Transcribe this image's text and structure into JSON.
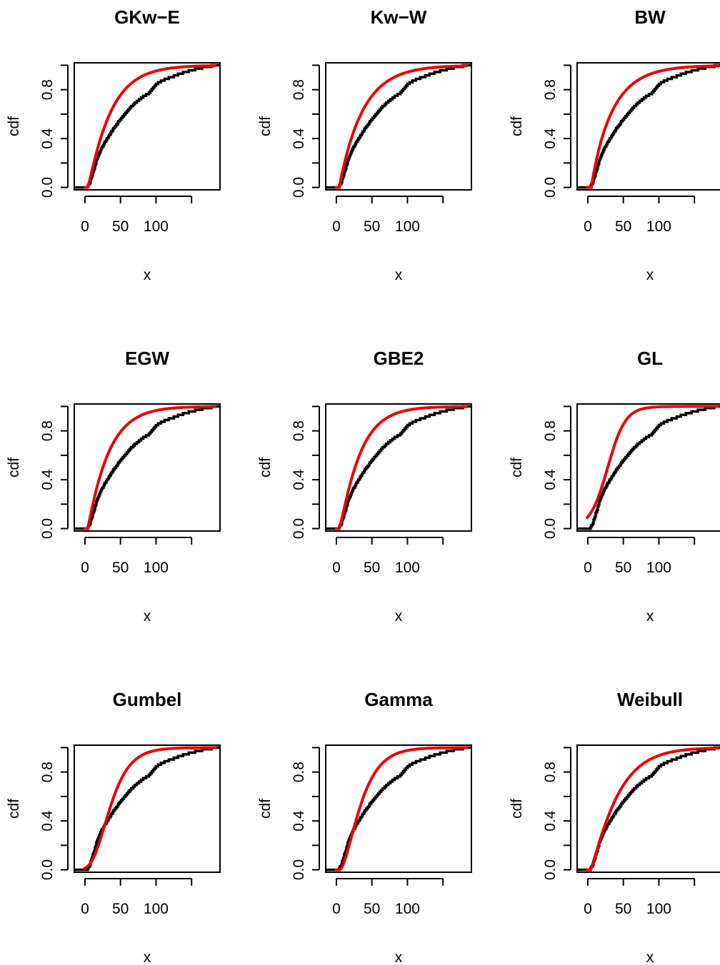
{
  "figure": {
    "colors": {
      "empirical": "#000000",
      "fitted": "#ee0000",
      "axes": "#000000"
    }
  },
  "chart_data": [
    {
      "type": "line",
      "title": "GKw−E",
      "xlabel": "x",
      "ylabel": "cdf",
      "xticks": [
        "0",
        "50",
        "100"
      ],
      "xtick_values": [
        0,
        50,
        100,
        150
      ],
      "yticks": [
        "0.0",
        "0.4",
        "0.8"
      ],
      "ytick_values": [
        0,
        0.2,
        0.4,
        0.6,
        0.8,
        1.0
      ],
      "xlim": [
        -15,
        190
      ],
      "ylim": [
        -0.02,
        1.02
      ],
      "grid": false,
      "fit_model": "gkwe",
      "series": []
    },
    {
      "type": "line",
      "title": "Kw−W",
      "xlabel": "x",
      "ylabel": "cdf",
      "xticks": [
        "0",
        "50",
        "100"
      ],
      "xtick_values": [
        0,
        50,
        100,
        150
      ],
      "yticks": [
        "0.0",
        "0.4",
        "0.8"
      ],
      "ytick_values": [
        0,
        0.2,
        0.4,
        0.6,
        0.8,
        1.0
      ],
      "xlim": [
        -15,
        190
      ],
      "ylim": [
        -0.02,
        1.02
      ],
      "grid": false,
      "fit_model": "kww",
      "series": []
    },
    {
      "type": "line",
      "title": "BW",
      "xlabel": "x",
      "ylabel": "cdf",
      "xticks": [
        "0",
        "50",
        "100"
      ],
      "xtick_values": [
        0,
        50,
        100,
        150
      ],
      "yticks": [
        "0.0",
        "0.4",
        "0.8"
      ],
      "ytick_values": [
        0,
        0.2,
        0.4,
        0.6,
        0.8,
        1.0
      ],
      "xlim": [
        -15,
        190
      ],
      "ylim": [
        -0.02,
        1.02
      ],
      "grid": false,
      "fit_model": "bw",
      "series": []
    },
    {
      "type": "line",
      "title": "EGW",
      "xlabel": "x",
      "ylabel": "cdf",
      "xticks": [
        "0",
        "50",
        "100"
      ],
      "xtick_values": [
        0,
        50,
        100,
        150
      ],
      "yticks": [
        "0.0",
        "0.4",
        "0.8"
      ],
      "ytick_values": [
        0,
        0.2,
        0.4,
        0.6,
        0.8,
        1.0
      ],
      "xlim": [
        -15,
        190
      ],
      "ylim": [
        -0.02,
        1.02
      ],
      "grid": false,
      "fit_model": "egw",
      "series": []
    },
    {
      "type": "line",
      "title": "GBE2",
      "xlabel": "x",
      "ylabel": "cdf",
      "xticks": [
        "0",
        "50",
        "100"
      ],
      "xtick_values": [
        0,
        50,
        100,
        150
      ],
      "yticks": [
        "0.0",
        "0.4",
        "0.8"
      ],
      "ytick_values": [
        0,
        0.2,
        0.4,
        0.6,
        0.8,
        1.0
      ],
      "xlim": [
        -15,
        190
      ],
      "ylim": [
        -0.02,
        1.02
      ],
      "grid": false,
      "fit_model": "gbe2",
      "series": []
    },
    {
      "type": "line",
      "title": "GL",
      "xlabel": "x",
      "ylabel": "cdf",
      "xticks": [
        "0",
        "50",
        "100"
      ],
      "xtick_values": [
        0,
        50,
        100,
        150
      ],
      "yticks": [
        "0.0",
        "0.4",
        "0.8"
      ],
      "ytick_values": [
        0,
        0.2,
        0.4,
        0.6,
        0.8,
        1.0
      ],
      "xlim": [
        -15,
        190
      ],
      "ylim": [
        -0.02,
        1.02
      ],
      "grid": false,
      "fit_model": "gl",
      "series": []
    },
    {
      "type": "line",
      "title": "Gumbel",
      "xlabel": "x",
      "ylabel": "cdf",
      "xticks": [
        "0",
        "50",
        "100"
      ],
      "xtick_values": [
        0,
        50,
        100,
        150
      ],
      "yticks": [
        "0.0",
        "0.4",
        "0.8"
      ],
      "ytick_values": [
        0,
        0.2,
        0.4,
        0.6,
        0.8,
        1.0
      ],
      "xlim": [
        -15,
        190
      ],
      "ylim": [
        -0.02,
        1.02
      ],
      "grid": false,
      "fit_model": "gumbel",
      "series": []
    },
    {
      "type": "line",
      "title": "Gamma",
      "xlabel": "x",
      "ylabel": "cdf",
      "xticks": [
        "0",
        "50",
        "100"
      ],
      "xtick_values": [
        0,
        50,
        100,
        150
      ],
      "yticks": [
        "0.0",
        "0.4",
        "0.8"
      ],
      "ytick_values": [
        0,
        0.2,
        0.4,
        0.6,
        0.8,
        1.0
      ],
      "xlim": [
        -15,
        190
      ],
      "ylim": [
        -0.02,
        1.02
      ],
      "grid": false,
      "fit_model": "gamma",
      "series": []
    },
    {
      "type": "line",
      "title": "Weibull",
      "xlabel": "x",
      "ylabel": "cdf",
      "xticks": [
        "0",
        "50",
        "100"
      ],
      "xtick_values": [
        0,
        50,
        100,
        150
      ],
      "yticks": [
        "0.0",
        "0.4",
        "0.8"
      ],
      "ytick_values": [
        0,
        0.2,
        0.4,
        0.6,
        0.8,
        1.0
      ],
      "xlim": [
        -15,
        190
      ],
      "ylim": [
        -0.02,
        1.02
      ],
      "grid": false,
      "fit_model": "weibull",
      "series": []
    }
  ]
}
